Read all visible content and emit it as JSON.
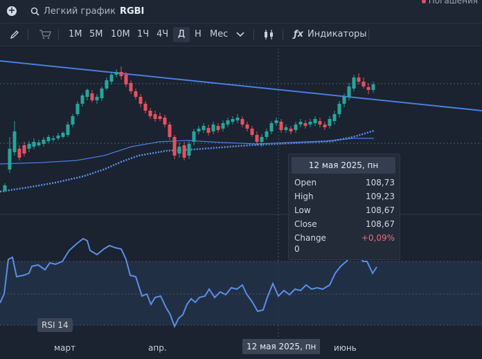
{
  "search": {
    "title": "Легкий график",
    "ticker": "RGBI"
  },
  "top_right": {
    "label": "Погашения"
  },
  "toolbar": {
    "intervals": [
      "1М",
      "5М",
      "10М",
      "1Ч",
      "4Ч",
      "Д",
      "Н",
      "Мес"
    ],
    "active_interval": "Д",
    "indicators_label": "Индикаторы"
  },
  "tooltip": {
    "date": "12 мая 2025, пн",
    "rows": [
      {
        "label": "Open",
        "value": "108,73"
      },
      {
        "label": "High",
        "value": "109,23"
      },
      {
        "label": "Low",
        "value": "108,67"
      },
      {
        "label": "Close",
        "value": "108,67"
      },
      {
        "label": "Change",
        "value": "+0,09%"
      }
    ],
    "extra": "0"
  },
  "rsi": {
    "label": "RSI 14"
  },
  "x_axis": {
    "labels": [
      "март",
      "апр.",
      "июнь"
    ],
    "highlight": "12 мая 2025, пн"
  },
  "colors": {
    "up": "#26a69a",
    "down": "#e5515e",
    "trend": "#4a7fe0",
    "ma": "#4a7fe0",
    "rsi": "#5b8fe6"
  },
  "icons": [
    "add-icon",
    "search-icon",
    "pencil-icon",
    "cart-icon",
    "chevron-down-icon",
    "candles-icon",
    "fx-icon"
  ]
}
